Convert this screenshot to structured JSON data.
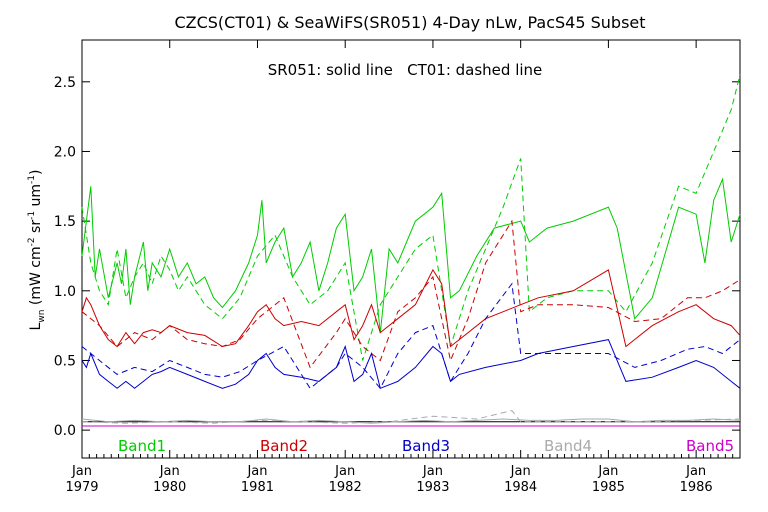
{
  "chart_data": {
    "type": "line",
    "title": "CZCS(CT01) & SeaWiFS(SR051) 4-Day nLw, PacS45 Subset",
    "subtitle": "SR051: solid line   CT01: dashed line",
    "ylabel": "L_wn (mW cm^-2 sr^-1 um^-1)",
    "ylabel_parts": {
      "base": "L",
      "base_sub": "wn",
      "open": " (mW cm",
      "exp1": "-2",
      "mid1": " sr",
      "exp2": "-1",
      "mid2": " um",
      "exp3": "-1",
      "close": ")"
    },
    "xlabel": "",
    "xlim": [
      1979.0,
      1986.5
    ],
    "ylim": [
      -0.2,
      2.8
    ],
    "y_ticks": [
      0.0,
      0.5,
      1.0,
      1.5,
      2.0,
      2.5
    ],
    "y_tick_labels": [
      "0.0",
      "0.5",
      "1.0",
      "1.5",
      "2.0",
      "2.5"
    ],
    "x_ticks": [
      1979,
      1980,
      1981,
      1982,
      1983,
      1984,
      1985,
      1986
    ],
    "x_tick_month": "Jan",
    "x_tick_years": [
      "1979",
      "1980",
      "1981",
      "1982",
      "1983",
      "1984",
      "1985",
      "1986"
    ],
    "zero_line": 0.06,
    "legend": {
      "placement": "bottom",
      "entries": [
        {
          "label": "Band1",
          "color": "#00cc00"
        },
        {
          "label": "Band2",
          "color": "#cc0000"
        },
        {
          "label": "Band3",
          "color": "#0000cc"
        },
        {
          "label": "Band4",
          "color": "#aaaaaa"
        },
        {
          "label": "Band5",
          "color": "#cc00cc"
        }
      ]
    },
    "series": [
      {
        "name": "Band1",
        "style": "solid",
        "color": "#00cc00",
        "x": [
          1979.0,
          1979.05,
          1979.1,
          1979.15,
          1979.2,
          1979.3,
          1979.4,
          1979.45,
          1979.5,
          1979.55,
          1979.6,
          1979.7,
          1979.75,
          1979.8,
          1979.9,
          1980.0,
          1980.1,
          1980.2,
          1980.3,
          1980.4,
          1980.5,
          1980.6,
          1980.75,
          1980.9,
          1981.0,
          1981.05,
          1981.1,
          1981.2,
          1981.3,
          1981.4,
          1981.5,
          1981.6,
          1981.7,
          1981.8,
          1981.9,
          1982.0,
          1982.1,
          1982.2,
          1982.3,
          1982.4,
          1982.5,
          1982.6,
          1982.7,
          1982.8,
          1982.9,
          1983.0,
          1983.1,
          1983.2,
          1983.3,
          1983.5,
          1983.7,
          1984.0,
          1984.1,
          1984.3,
          1984.6,
          1985.0,
          1985.1,
          1985.3,
          1985.5,
          1985.8,
          1986.0,
          1986.1,
          1986.2,
          1986.3,
          1986.4,
          1986.5
        ],
        "y": [
          1.25,
          1.5,
          1.75,
          1.1,
          1.3,
          0.95,
          1.2,
          1.05,
          1.3,
          0.9,
          1.1,
          1.35,
          1.0,
          1.2,
          1.1,
          1.3,
          1.1,
          1.2,
          1.05,
          1.1,
          0.95,
          0.88,
          1.0,
          1.2,
          1.4,
          1.65,
          1.2,
          1.35,
          1.45,
          1.1,
          1.2,
          1.35,
          1.0,
          1.2,
          1.45,
          1.55,
          1.0,
          1.1,
          1.3,
          0.7,
          1.3,
          1.2,
          1.35,
          1.5,
          1.55,
          1.6,
          1.7,
          0.95,
          1.0,
          1.25,
          1.45,
          1.5,
          1.35,
          1.45,
          1.5,
          1.6,
          1.45,
          0.8,
          0.95,
          1.6,
          1.55,
          1.2,
          1.65,
          1.8,
          1.35,
          1.55
        ]
      },
      {
        "name": "Band1 CT01",
        "style": "dashed",
        "color": "#00cc00",
        "x": [
          1979.0,
          1979.1,
          1979.2,
          1979.3,
          1979.4,
          1979.5,
          1979.6,
          1979.7,
          1979.8,
          1979.9,
          1980.0,
          1980.1,
          1980.2,
          1980.4,
          1980.6,
          1980.8,
          1981.0,
          1981.2,
          1981.4,
          1981.6,
          1981.8,
          1982.0,
          1982.2,
          1982.4,
          1982.6,
          1982.8,
          1983.0,
          1983.2,
          1983.4,
          1983.6,
          1983.8,
          1984.0,
          1984.1,
          1984.3,
          1984.6,
          1985.0,
          1985.2,
          1985.5,
          1985.8,
          1986.0,
          1986.2,
          1986.4,
          1986.5
        ],
        "y": [
          1.6,
          1.2,
          1.0,
          0.9,
          1.3,
          0.95,
          1.1,
          1.2,
          1.05,
          1.25,
          1.15,
          1.0,
          1.1,
          0.9,
          0.8,
          0.95,
          1.25,
          1.4,
          1.1,
          0.9,
          1.0,
          1.2,
          0.5,
          0.9,
          1.1,
          1.3,
          1.4,
          0.6,
          1.0,
          1.3,
          1.6,
          1.95,
          0.85,
          0.95,
          1.0,
          1.0,
          0.85,
          1.2,
          1.75,
          1.7,
          2.0,
          2.3,
          2.55
        ]
      },
      {
        "name": "Band2",
        "style": "solid",
        "color": "#cc0000",
        "x": [
          1979.0,
          1979.05,
          1979.1,
          1979.2,
          1979.3,
          1979.4,
          1979.5,
          1979.6,
          1979.7,
          1979.8,
          1979.9,
          1980.0,
          1980.2,
          1980.4,
          1980.6,
          1980.75,
          1980.9,
          1981.0,
          1981.1,
          1981.2,
          1981.3,
          1981.5,
          1981.7,
          1981.9,
          1982.0,
          1982.1,
          1982.2,
          1982.3,
          1982.4,
          1982.6,
          1982.8,
          1983.0,
          1983.1,
          1983.2,
          1983.3,
          1983.6,
          1984.0,
          1984.2,
          1984.6,
          1985.0,
          1985.2,
          1985.5,
          1985.8,
          1986.0,
          1986.2,
          1986.4,
          1986.5
        ],
        "y": [
          0.85,
          0.95,
          0.9,
          0.75,
          0.65,
          0.6,
          0.7,
          0.62,
          0.7,
          0.72,
          0.7,
          0.75,
          0.7,
          0.68,
          0.6,
          0.62,
          0.75,
          0.85,
          0.9,
          0.8,
          0.75,
          0.78,
          0.75,
          0.85,
          0.9,
          0.65,
          0.75,
          0.9,
          0.7,
          0.8,
          0.9,
          1.15,
          1.05,
          0.6,
          0.65,
          0.8,
          0.9,
          0.95,
          1.0,
          1.15,
          0.6,
          0.75,
          0.85,
          0.9,
          0.8,
          0.75,
          0.68
        ]
      },
      {
        "name": "Band2 CT01",
        "style": "dashed",
        "color": "#cc0000",
        "x": [
          1979.0,
          1979.2,
          1979.4,
          1979.6,
          1979.8,
          1980.0,
          1980.2,
          1980.4,
          1980.6,
          1980.8,
          1981.0,
          1981.3,
          1981.6,
          1981.9,
          1982.0,
          1982.2,
          1982.4,
          1982.6,
          1982.8,
          1983.0,
          1983.2,
          1983.4,
          1983.6,
          1983.9,
          1984.0,
          1984.2,
          1984.6,
          1985.0,
          1985.3,
          1985.6,
          1985.9,
          1986.1,
          1986.3,
          1986.5
        ],
        "y": [
          0.85,
          0.75,
          0.6,
          0.7,
          0.65,
          0.75,
          0.65,
          0.62,
          0.6,
          0.65,
          0.8,
          0.95,
          0.45,
          0.7,
          0.8,
          0.6,
          0.5,
          0.85,
          0.95,
          1.1,
          0.5,
          0.8,
          1.2,
          1.5,
          0.85,
          0.9,
          0.9,
          0.88,
          0.78,
          0.8,
          0.95,
          0.95,
          1.0,
          1.08
        ]
      },
      {
        "name": "Band3",
        "style": "solid",
        "color": "#0000cc",
        "x": [
          1979.0,
          1979.05,
          1979.1,
          1979.2,
          1979.3,
          1979.4,
          1979.5,
          1979.6,
          1979.7,
          1979.8,
          1979.9,
          1980.0,
          1980.2,
          1980.4,
          1980.6,
          1980.75,
          1980.9,
          1981.0,
          1981.1,
          1981.2,
          1981.3,
          1981.5,
          1981.7,
          1981.9,
          1982.0,
          1982.1,
          1982.2,
          1982.3,
          1982.4,
          1982.6,
          1982.8,
          1983.0,
          1983.1,
          1983.2,
          1983.3,
          1983.6,
          1984.0,
          1984.2,
          1984.6,
          1985.0,
          1985.2,
          1985.5,
          1985.8,
          1986.0,
          1986.2,
          1986.4,
          1986.5
        ],
        "y": [
          0.5,
          0.45,
          0.55,
          0.4,
          0.35,
          0.3,
          0.35,
          0.3,
          0.35,
          0.4,
          0.42,
          0.45,
          0.4,
          0.35,
          0.3,
          0.33,
          0.4,
          0.5,
          0.55,
          0.45,
          0.4,
          0.38,
          0.35,
          0.45,
          0.6,
          0.35,
          0.4,
          0.55,
          0.3,
          0.35,
          0.45,
          0.6,
          0.55,
          0.35,
          0.4,
          0.45,
          0.5,
          0.55,
          0.6,
          0.65,
          0.35,
          0.38,
          0.45,
          0.5,
          0.45,
          0.35,
          0.3
        ]
      },
      {
        "name": "Band3 CT01",
        "style": "dashed",
        "color": "#0000cc",
        "x": [
          1979.0,
          1979.2,
          1979.4,
          1979.6,
          1979.8,
          1980.0,
          1980.2,
          1980.4,
          1980.6,
          1980.8,
          1981.0,
          1981.3,
          1981.6,
          1981.9,
          1982.0,
          1982.2,
          1982.4,
          1982.6,
          1982.8,
          1983.0,
          1983.2,
          1983.4,
          1983.6,
          1983.9,
          1984.0,
          1984.2,
          1984.6,
          1985.0,
          1985.3,
          1985.6,
          1985.9,
          1986.1,
          1986.3,
          1986.5
        ],
        "y": [
          0.6,
          0.5,
          0.4,
          0.45,
          0.42,
          0.5,
          0.45,
          0.4,
          0.38,
          0.42,
          0.5,
          0.6,
          0.3,
          0.45,
          0.55,
          0.45,
          0.3,
          0.55,
          0.7,
          0.75,
          0.35,
          0.55,
          0.8,
          1.05,
          0.55,
          0.55,
          0.55,
          0.55,
          0.45,
          0.5,
          0.58,
          0.6,
          0.55,
          0.65
        ]
      },
      {
        "name": "Band4",
        "style": "solid",
        "color": "#aaaaaa",
        "x": [
          1979.0,
          1979.3,
          1979.6,
          1979.9,
          1980.2,
          1980.5,
          1980.8,
          1981.1,
          1981.4,
          1981.7,
          1982.0,
          1982.3,
          1982.6,
          1982.9,
          1983.2,
          1983.5,
          1983.8,
          1984.1,
          1984.4,
          1984.7,
          1985.0,
          1985.3,
          1985.6,
          1985.9,
          1986.2,
          1986.5
        ],
        "y": [
          0.08,
          0.06,
          0.07,
          0.06,
          0.07,
          0.06,
          0.06,
          0.08,
          0.06,
          0.07,
          0.06,
          0.05,
          0.06,
          0.07,
          0.06,
          0.07,
          0.08,
          0.07,
          0.07,
          0.08,
          0.08,
          0.06,
          0.07,
          0.07,
          0.08,
          0.07
        ]
      },
      {
        "name": "Band4 CT01",
        "style": "dashed",
        "color": "#aaaaaa",
        "x": [
          1979.0,
          1979.5,
          1980.0,
          1980.5,
          1981.0,
          1981.5,
          1982.0,
          1982.5,
          1983.0,
          1983.5,
          1983.9,
          1984.0,
          1984.5,
          1985.0,
          1985.5,
          1986.0,
          1986.5
        ],
        "y": [
          0.06,
          0.05,
          0.06,
          0.05,
          0.07,
          0.06,
          0.05,
          0.06,
          0.1,
          0.08,
          0.14,
          0.06,
          0.06,
          0.06,
          0.06,
          0.07,
          0.08
        ]
      },
      {
        "name": "Band5",
        "style": "solid",
        "color": "#cc00cc",
        "x": [
          1979.0,
          1980.0,
          1981.0,
          1982.0,
          1983.0,
          1984.0,
          1985.0,
          1986.0,
          1986.5
        ],
        "y": [
          0.03,
          0.03,
          0.03,
          0.03,
          0.03,
          0.03,
          0.03,
          0.03,
          0.03
        ]
      }
    ]
  }
}
